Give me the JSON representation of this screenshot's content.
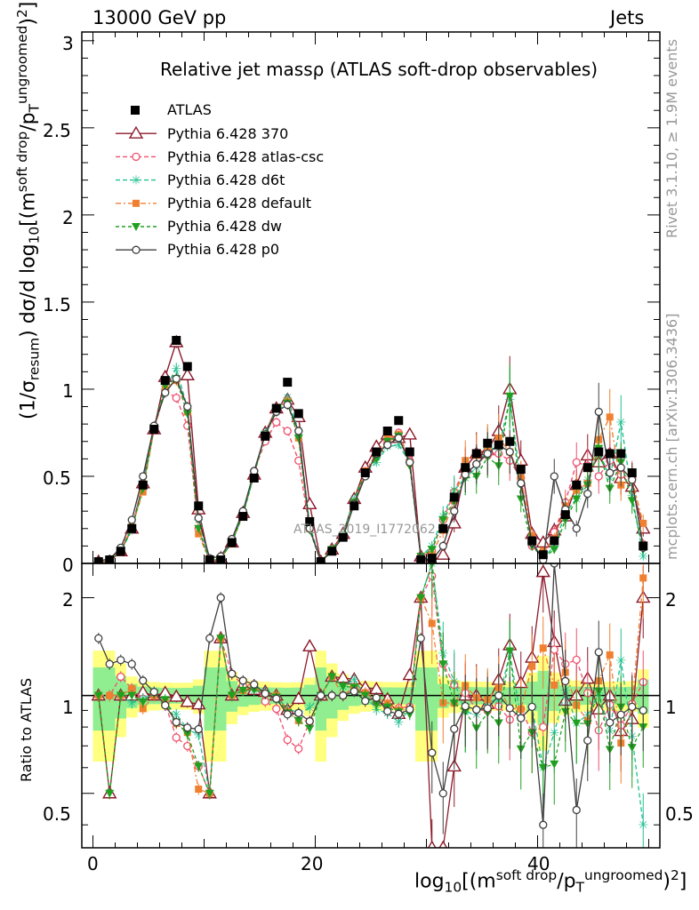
{
  "header": {
    "energy_label": "13000 GeV pp",
    "category_label": "Jets"
  },
  "side_text": {
    "rivet": "Rivet 3.1.10, ≥ 1.9M events",
    "mcplots": "mcplots.cern.ch [arXiv:1306.3436]"
  },
  "watermark": "ATLAS_2019_I1772062",
  "colors": {
    "ATLAS": "#000000",
    "p370": "#8b1a2b",
    "atlas_csc": "#f0506e",
    "d6t": "#20c090",
    "default": "#f08030",
    "dw": "#20a020",
    "p0": "#404040",
    "band_inner": "#90ee90",
    "band_outer": "#ffff80"
  },
  "chart_data": {
    "type": "line",
    "title": "Relative jet massρ (ATLAS soft-drop observables)",
    "xlabel": "log10[(m^soft drop/pT^ungroomed)^2]",
    "ylabel_main": "(1/σresum) dσ/d log10[(m^soft drop/pT^ungroomed)^2]",
    "ylabel_ratio": "Ratio to ATLAS",
    "xlim": [
      -1,
      51
    ],
    "ylim": [
      0,
      3.05
    ],
    "ratio_ylim": [
      0.34,
      2.55
    ],
    "x_ticks": [
      "0",
      "20",
      "40"
    ],
    "y_ticks": [
      "0",
      "0.5",
      "1",
      "1.5",
      "2",
      "2.5",
      "3"
    ],
    "ratio_ticks": [
      "0.5",
      "1",
      "2"
    ],
    "legend_placement": "top-left",
    "x": [
      0.5,
      1.5,
      2.5,
      3.5,
      4.5,
      5.5,
      6.5,
      7.5,
      8.5,
      9.5,
      10.5,
      11.5,
      12.5,
      13.5,
      14.5,
      15.5,
      16.5,
      17.5,
      18.5,
      19.5,
      20.5,
      21.5,
      22.5,
      23.5,
      24.5,
      25.5,
      26.5,
      27.5,
      28.5,
      29.5,
      30.5,
      31.5,
      32.5,
      33.5,
      34.5,
      35.5,
      36.5,
      37.5,
      38.5,
      39.5,
      40.5,
      41.5,
      42.5,
      43.5,
      44.5,
      45.5,
      46.5,
      47.5,
      48.5,
      49.5
    ],
    "series": [
      {
        "name": "ATLAS",
        "key": "ATLAS",
        "values": [
          0.01,
          0.02,
          0.07,
          0.2,
          0.45,
          0.77,
          1.05,
          1.28,
          1.13,
          0.33,
          0.02,
          0.02,
          0.12,
          0.27,
          0.49,
          0.73,
          0.89,
          1.04,
          0.86,
          0.24,
          0.01,
          0.07,
          0.15,
          0.33,
          0.52,
          0.64,
          0.76,
          0.82,
          0.64,
          0.02,
          0.03,
          0.2,
          0.38,
          0.55,
          0.63,
          0.69,
          0.68,
          0.7,
          0.54,
          0.13,
          0.05,
          0.13,
          0.28,
          0.45,
          0.55,
          0.64,
          0.63,
          0.63,
          0.52,
          0.1
        ]
      },
      {
        "name": "Pythia 6.428 370",
        "key": "p370",
        "values": [
          0.01,
          0.01,
          0.07,
          0.2,
          0.46,
          0.77,
          1.07,
          1.27,
          1.08,
          0.31,
          0.01,
          0.03,
          0.12,
          0.29,
          0.51,
          0.75,
          0.89,
          0.94,
          0.84,
          0.34,
          0.01,
          0.08,
          0.17,
          0.37,
          0.55,
          0.67,
          0.74,
          0.72,
          0.74,
          0.04,
          0.01,
          0.05,
          0.23,
          0.55,
          0.63,
          0.65,
          0.76,
          1.0,
          0.59,
          0.17,
          0.12,
          0.19,
          0.27,
          0.45,
          0.62,
          0.58,
          0.63,
          0.49,
          0.44,
          0.2
        ]
      },
      {
        "name": "Pythia 6.428 atlas-csc",
        "key": "atlas_csc",
        "values": [
          0.01,
          0.02,
          0.08,
          0.21,
          0.44,
          0.77,
          0.99,
          0.95,
          0.79,
          0.2,
          0.01,
          0.03,
          0.14,
          0.29,
          0.53,
          0.7,
          0.81,
          0.76,
          0.59,
          0.2,
          0.01,
          0.07,
          0.15,
          0.35,
          0.53,
          0.61,
          0.7,
          0.75,
          0.59,
          0.04,
          0.07,
          0.25,
          0.41,
          0.56,
          0.57,
          0.62,
          0.63,
          0.59,
          0.49,
          0.1,
          0.04,
          0.18,
          0.35,
          0.58,
          0.56,
          0.5,
          0.59,
          0.51,
          0.49,
          0.11
        ]
      },
      {
        "name": "Pythia 6.428 d6t",
        "key": "d6t",
        "values": [
          0.01,
          0.02,
          0.07,
          0.19,
          0.44,
          0.78,
          1.0,
          1.12,
          0.89,
          0.25,
          0.01,
          0.03,
          0.12,
          0.28,
          0.51,
          0.75,
          0.88,
          0.95,
          0.76,
          0.22,
          0.01,
          0.08,
          0.16,
          0.37,
          0.52,
          0.58,
          0.67,
          0.68,
          0.58,
          0.04,
          0.1,
          0.27,
          0.42,
          0.49,
          0.55,
          0.66,
          0.66,
          0.94,
          0.46,
          0.12,
          0.03,
          0.1,
          0.29,
          0.37,
          0.48,
          0.65,
          0.49,
          0.81,
          0.39,
          0.04
        ]
      },
      {
        "name": "Pythia 6.428 default",
        "key": "default",
        "values": [
          0.01,
          0.02,
          0.07,
          0.21,
          0.41,
          0.77,
          1.0,
          1.05,
          0.87,
          0.17,
          0.01,
          0.03,
          0.12,
          0.28,
          0.52,
          0.74,
          0.89,
          0.93,
          0.72,
          0.2,
          0.01,
          0.08,
          0.15,
          0.35,
          0.53,
          0.63,
          0.72,
          0.74,
          0.58,
          0.04,
          0.05,
          0.19,
          0.36,
          0.59,
          0.62,
          0.67,
          0.72,
          0.64,
          0.49,
          0.16,
          0.07,
          0.14,
          0.33,
          0.42,
          0.46,
          0.71,
          0.84,
          0.45,
          0.48,
          0.23
        ]
      },
      {
        "name": "Pythia 6.428 dw",
        "key": "dw",
        "values": [
          0.01,
          0.01,
          0.07,
          0.2,
          0.43,
          0.78,
          1.02,
          1.06,
          0.86,
          0.2,
          0.01,
          0.03,
          0.12,
          0.28,
          0.51,
          0.74,
          0.88,
          0.92,
          0.72,
          0.19,
          0.01,
          0.08,
          0.16,
          0.35,
          0.52,
          0.6,
          0.7,
          0.73,
          0.56,
          0.04,
          0.08,
          0.25,
          0.36,
          0.49,
          0.5,
          0.61,
          0.56,
          0.96,
          0.37,
          0.1,
          0.03,
          0.08,
          0.25,
          0.37,
          0.45,
          0.66,
          0.43,
          0.58,
          0.36,
          0.08
        ]
      },
      {
        "name": "Pythia 6.428 p0",
        "key": "p0",
        "values": [
          0.015,
          0.025,
          0.09,
          0.25,
          0.5,
          0.79,
          0.98,
          1.06,
          0.9,
          0.26,
          0.03,
          0.04,
          0.14,
          0.3,
          0.53,
          0.74,
          0.87,
          0.91,
          0.76,
          0.2,
          0.01,
          0.07,
          0.15,
          0.34,
          0.5,
          0.63,
          0.68,
          0.72,
          0.58,
          0.03,
          0.02,
          0.1,
          0.3,
          0.51,
          0.57,
          0.63,
          0.68,
          0.64,
          0.46,
          0.12,
          0.02,
          0.5,
          0.31,
          0.2,
          0.4,
          0.87,
          0.52,
          0.55,
          0.48,
          0.09
        ]
      }
    ]
  }
}
